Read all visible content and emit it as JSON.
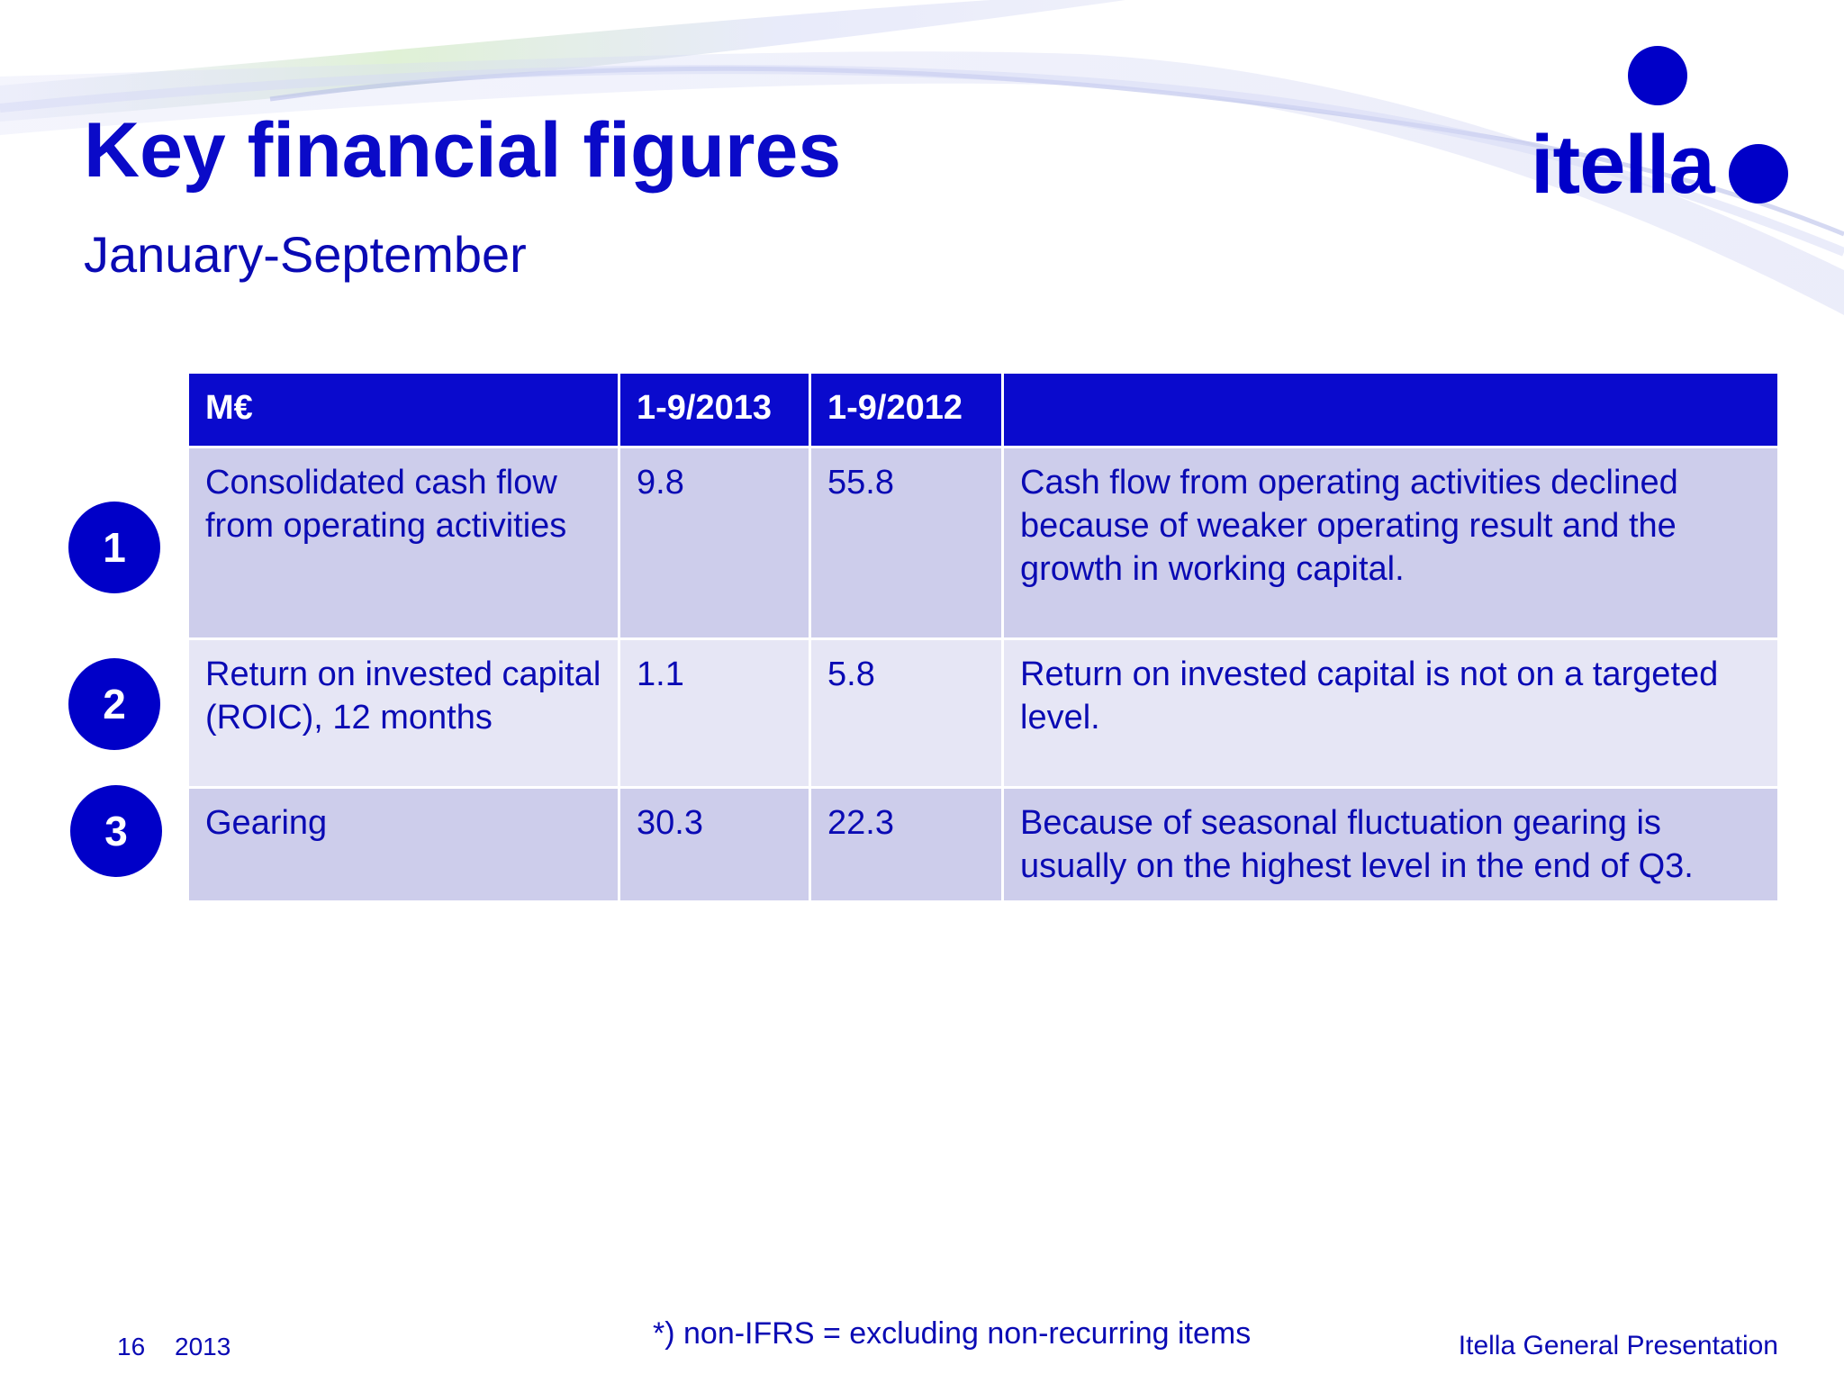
{
  "slide": {
    "title": "Key financial figures",
    "subtitle": "January-September",
    "logo_text": "itella",
    "colors": {
      "primary": "#0000c8",
      "header_fill": "#0a0acd",
      "row_dark": "#cdcdeb",
      "row_light": "#e6e6f5"
    }
  },
  "table": {
    "headers": [
      "M€",
      "1-9/2013",
      "1-9/2012",
      ""
    ],
    "rows": [
      {
        "badge": "1",
        "metric": "Consolidated cash flow from operating activities",
        "v2013": "9.8",
        "v2012": "55.8",
        "comment": "Cash flow from operating activities declined because of weaker operating result and the growth in working capital."
      },
      {
        "badge": "2",
        "metric": "Return on invested capital (ROIC), 12 months",
        "v2013": "1.1",
        "v2012": "5.8",
        "comment": "Return on invested capital is not on a targeted level."
      },
      {
        "badge": "3",
        "metric": "Gearing",
        "v2013": "30.3",
        "v2012": "22.3",
        "comment": "Because of seasonal fluctuation gearing is usually on the highest level in the end of Q3."
      }
    ]
  },
  "footer": {
    "footnote": "*) non-IFRS = excluding non-recurring items",
    "page_number": "16",
    "year": "2013",
    "presentation_name": "Itella General Presentation"
  }
}
